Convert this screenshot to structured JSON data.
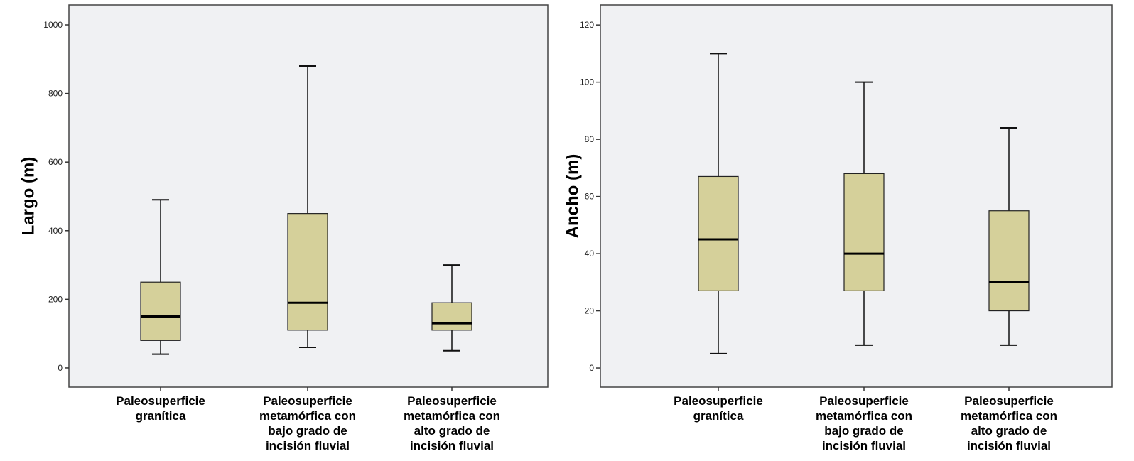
{
  "chart_data": [
    {
      "type": "box",
      "title": "",
      "ylabel": "Largo (m)",
      "xlabel": "",
      "ylim": [
        -56,
        1058
      ],
      "yticks": [
        0,
        200,
        400,
        600,
        800,
        1000
      ],
      "grid": false,
      "box_color": "#d5d09a",
      "categories": [
        [
          "Paleosuperficie",
          "granítica"
        ],
        [
          "Paleosuperficie",
          "metamórfica con",
          "bajo grado de",
          "incisión fluvial"
        ],
        [
          "Paleosuperficie",
          "metamórfica con",
          "alto grado de",
          "incisión fluvial"
        ]
      ],
      "boxes": [
        {
          "min": 40,
          "q1": 80,
          "median": 150,
          "q3": 250,
          "max": 490
        },
        {
          "min": 60,
          "q1": 110,
          "median": 190,
          "q3": 450,
          "max": 880
        },
        {
          "min": 50,
          "q1": 110,
          "median": 130,
          "q3": 190,
          "max": 300
        }
      ]
    },
    {
      "type": "box",
      "title": "",
      "ylabel": "Ancho (m)",
      "xlabel": "",
      "ylim": [
        -6.7,
        127
      ],
      "yticks": [
        0,
        20,
        40,
        60,
        80,
        100,
        120
      ],
      "grid": false,
      "box_color": "#d5d09a",
      "categories": [
        [
          "Paleosuperficie",
          "granítica"
        ],
        [
          "Paleosuperficie",
          "metamórfica con",
          "bajo grado de",
          "incisión fluvial"
        ],
        [
          "Paleosuperficie",
          "metamórfica con",
          "alto grado de",
          "incisión fluvial"
        ]
      ],
      "boxes": [
        {
          "min": 5,
          "q1": 27,
          "median": 45,
          "q3": 67,
          "max": 110
        },
        {
          "min": 8,
          "q1": 27,
          "median": 40,
          "q3": 68,
          "max": 100
        },
        {
          "min": 8,
          "q1": 20,
          "median": 30,
          "q3": 55,
          "max": 84
        }
      ]
    }
  ]
}
